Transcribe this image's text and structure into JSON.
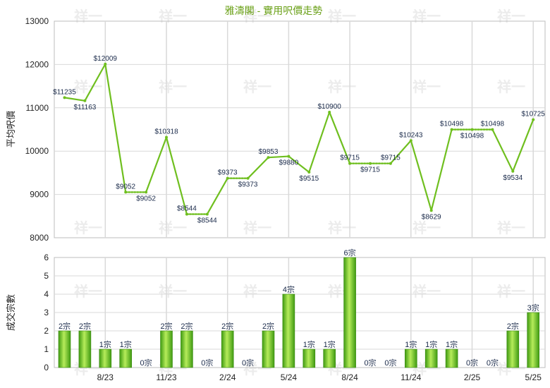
{
  "title": "雅濤閣 - 實用呎價走勢",
  "colors": {
    "line": "#6fbf1f",
    "bar_light": "#b6ec5a",
    "bar_dark": "#3f9a12",
    "grid": "#d9d9d9",
    "title": "#6aa017"
  },
  "chart_data": [
    {
      "type": "line",
      "ylabel": "平均呎價",
      "ylim": [
        8000,
        13000
      ],
      "yticks": [
        "8000",
        "9000",
        "10000",
        "11000",
        "12000",
        "13000"
      ],
      "values": [
        11235,
        11163,
        12009,
        9052,
        9052,
        10318,
        8544,
        8544,
        9373,
        9373,
        9853,
        9880,
        9515,
        10900,
        9715,
        9715,
        9715,
        10243,
        8629,
        10498,
        10498,
        10498,
        9534,
        10725
      ],
      "labels": [
        "$11235",
        "$11163",
        "$12009",
        "$9052",
        "$9052",
        "$10318",
        "$8544",
        "$8544",
        "$9373",
        "$9373",
        "$9853",
        "$9880",
        "$9515",
        "$10900",
        "$9715",
        "$9715",
        "$9715",
        "$10243",
        "$8629",
        "$10498",
        "$10498",
        "$10498",
        "$9534",
        "$10725"
      ],
      "label_pos": [
        "a",
        "b",
        "a",
        "a",
        "b",
        "a",
        "a",
        "b",
        "a",
        "b",
        "a",
        "b",
        "b",
        "a",
        "a",
        "b",
        "a",
        "a",
        "b",
        "a",
        "b",
        "a",
        "b",
        "a"
      ],
      "no_trade": [
        false,
        false,
        false,
        false,
        true,
        false,
        false,
        true,
        false,
        true,
        false,
        false,
        false,
        false,
        false,
        true,
        true,
        false,
        false,
        false,
        true,
        true,
        false,
        false
      ],
      "grid": true
    },
    {
      "type": "bar",
      "ylabel": "成交宗數",
      "ylim": [
        0,
        6
      ],
      "yticks": [
        "0",
        "1",
        "2",
        "3",
        "4",
        "5",
        "6"
      ],
      "values": [
        2,
        2,
        1,
        1,
        0,
        2,
        2,
        0,
        2,
        0,
        2,
        4,
        1,
        1,
        6,
        0,
        0,
        1,
        1,
        1,
        0,
        0,
        2,
        3
      ],
      "labels": [
        "2宗",
        "2宗",
        "1宗",
        "1宗",
        "0宗",
        "2宗",
        "2宗",
        "0宗",
        "2宗",
        "0宗",
        "2宗",
        "4宗",
        "1宗",
        "1宗",
        "6宗",
        "0宗",
        "0宗",
        "1宗",
        "1宗",
        "1宗",
        "0宗",
        "0宗",
        "2宗",
        "3宗"
      ],
      "xticks": [
        "8/23",
        "11/23",
        "2/24",
        "5/24",
        "8/24",
        "11/24",
        "2/25",
        "5/25"
      ],
      "xtick_index": [
        2,
        5,
        8,
        11,
        14,
        17,
        20,
        23
      ],
      "grid": true
    }
  ],
  "watermark": "祥一"
}
